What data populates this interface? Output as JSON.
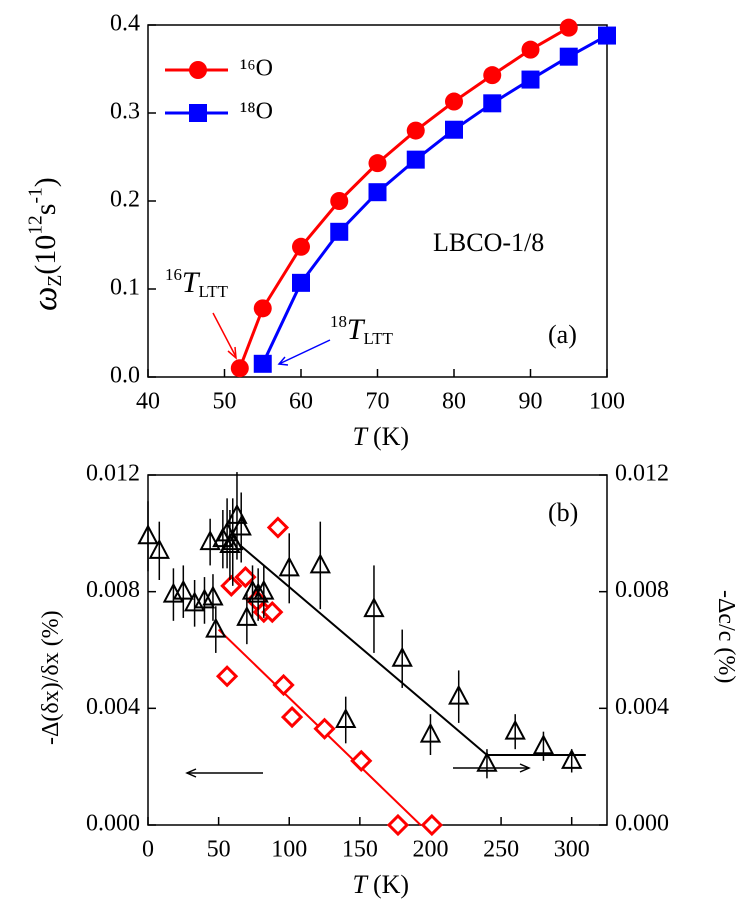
{
  "chart_data": [
    {
      "type": "line",
      "legend": "upper left",
      "x_label": [
        {
          "text": "T",
          "italic": true
        },
        {
          "text": "(K)"
        }
      ],
      "y_label": [
        {
          "text": "ω",
          "italic": true,
          "big": true
        },
        {
          "text": "Z",
          "sub": true
        },
        {
          "text": "(10"
        },
        {
          "text": "12",
          "sup": true
        },
        {
          "text": "s"
        },
        {
          "text": "-1",
          "sup": true
        },
        {
          "text": ")"
        }
      ],
      "xlim": [
        40,
        100
      ],
      "xticks": [
        40,
        50,
        60,
        70,
        80,
        90,
        100
      ],
      "ylim": [
        0,
        0.4
      ],
      "yticks": [
        {
          "value": 0,
          "label": "0.0"
        },
        0.1,
        0.2,
        0.3,
        0.4
      ],
      "series": [
        {
          "name": "¹⁶O",
          "color": "#ff0000",
          "marker": "circle",
          "x": [
            52,
            55,
            60,
            65,
            70,
            75,
            80,
            85,
            90,
            95
          ],
          "values": [
            0.01,
            0.078,
            0.148,
            0.2,
            0.243,
            0.28,
            0.313,
            0.343,
            0.372,
            0.397
          ]
        },
        {
          "name": "¹⁸O",
          "color": "#0000ff",
          "marker": "square",
          "x": [
            55,
            60,
            65,
            70,
            75,
            80,
            85,
            90,
            95,
            100
          ],
          "values": [
            0.015,
            0.107,
            0.165,
            0.21,
            0.247,
            0.281,
            0.311,
            0.338,
            0.364,
            0.388
          ]
        }
      ],
      "annotations": [
        {
          "parts": [
            {
              "text": "LBCO-1/8"
            }
          ]
        },
        {
          "parts": [
            {
              "text": "(a)"
            }
          ]
        },
        {
          "parts": [
            {
              "text": "16",
              "sup": true
            },
            {
              "text": "T",
              "italic": true,
              "big": true
            },
            {
              "text": "LTT",
              "sub": true
            }
          ]
        },
        {
          "parts": [
            {
              "text": "18",
              "sup": true
            },
            {
              "text": "T",
              "italic": true,
              "big": true
            },
            {
              "text": "LTT",
              "sub": true
            }
          ]
        }
      ]
    },
    {
      "type": "scatter",
      "x_label": [
        {
          "text": "T",
          "italic": true
        },
        {
          "text": "(K)"
        }
      ],
      "y_label": [
        {
          "text": "-Δ(δx)/δx (%)"
        }
      ],
      "y2_label": [
        {
          "text": "-Δc/c (%)"
        }
      ],
      "xlim": [
        0,
        325
      ],
      "xticks": [
        0,
        50,
        100,
        150,
        200,
        250,
        300
      ],
      "ylim": [
        0,
        0.012
      ],
      "yticks": [
        {
          "value": 0,
          "label": "0.000"
        },
        0.004,
        0.008,
        0.012
      ],
      "y2lim": [
        0,
        0.012
      ],
      "y2ticks": [
        {
          "value": 0,
          "label": "0.000"
        },
        0.004,
        0.008,
        0.012
      ],
      "series": [
        {
          "color": "#ff0000",
          "marker": "diamond",
          "x": [
            56,
            59,
            69,
            77,
            82,
            88,
            92,
            96,
            102,
            125,
            151,
            177,
            201
          ],
          "values": [
            0.0051,
            0.0082,
            0.0085,
            0.0077,
            0.0073,
            0.0073,
            0.0102,
            0.0048,
            0.0037,
            0.0033,
            0.0022,
            0.0,
            0.0
          ]
        },
        {
          "color": "#000000",
          "marker": "triangle",
          "axis": "y2",
          "x": [
            0,
            8,
            18,
            25,
            33,
            40,
            44,
            46,
            48,
            53,
            56,
            58,
            60,
            63,
            66,
            70,
            74,
            78,
            82,
            100,
            122,
            140,
            160,
            180,
            200,
            220,
            240,
            260,
            280,
            300
          ],
          "values": [
            0.0099,
            0.0094,
            0.0079,
            0.008,
            0.0076,
            0.0077,
            0.0097,
            0.0078,
            0.0067,
            0.0098,
            0.01,
            0.0096,
            0.0097,
            0.0106,
            0.0102,
            0.0071,
            0.008,
            0.0079,
            0.008,
            0.0088,
            0.0089,
            0.0036,
            0.0074,
            0.0057,
            0.0031,
            0.0044,
            0.0021,
            0.0032,
            0.0027,
            0.0022
          ],
          "errors": [
            0.0012,
            0.001,
            0.0009,
            0.0009,
            0.0008,
            0.0008,
            0.0008,
            0.0008,
            0.0008,
            0.001,
            0.0012,
            0.0012,
            0.0015,
            0.0015,
            0.0012,
            0.0009,
            0.0009,
            0.0009,
            0.0009,
            0.0012,
            0.0015,
            0.0008,
            0.0015,
            0.001,
            0.0007,
            0.0009,
            0.0005,
            0.0006,
            0.0005,
            0.0004
          ]
        }
      ],
      "fit_lines": [
        {
          "color": "#ff0000",
          "x": [
            50,
            193
          ],
          "values": [
            0.0067,
            0
          ]
        },
        {
          "color": "#000000",
          "axis": "y2",
          "x": [
            65,
            240,
            310
          ],
          "values": [
            0.0096,
            0.0024,
            0.0024
          ]
        }
      ],
      "annotations": [
        {
          "parts": [
            {
              "text": "(b)"
            }
          ]
        }
      ]
    }
  ]
}
